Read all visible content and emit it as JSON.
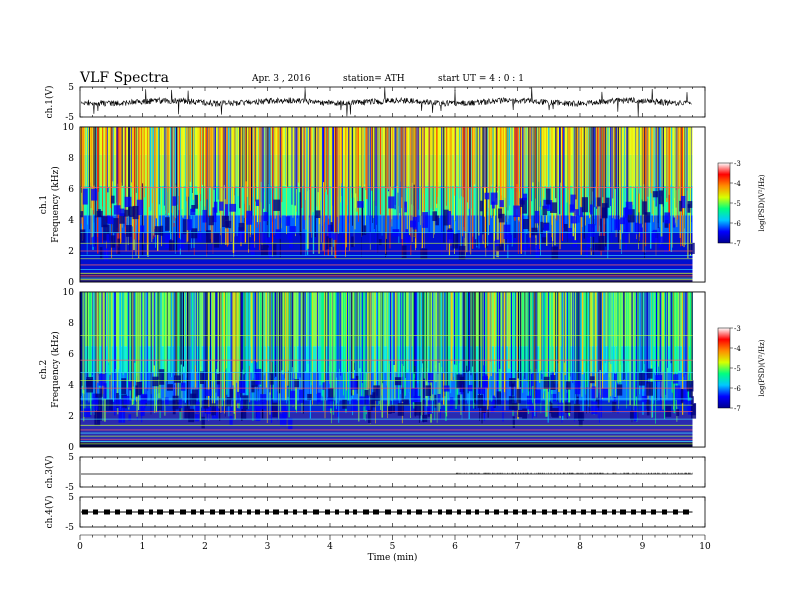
{
  "header": {
    "title": "VLF  Spectra",
    "date": "Apr. 3   , 2016",
    "station": "station= ATH",
    "start_ut": "start  UT  =   4  : 0   : 1"
  },
  "chart_data": [
    {
      "type": "line",
      "panel": "ch1-waveform",
      "ylabel": "ch.1(V)",
      "yticks": [
        5,
        -5
      ],
      "ylim": [
        -5,
        5
      ],
      "x_range": [
        0,
        9.8
      ],
      "baseline_value": 0,
      "grid": false
    },
    {
      "type": "heatmap",
      "panel": "ch1-spectrogram",
      "ylabel_channel": "ch.1",
      "ylabel": "Frequency  (kHz)",
      "yticks": [
        0,
        2,
        4,
        6,
        8,
        10
      ],
      "ylim": [
        0,
        10
      ],
      "x_range": [
        0,
        9.8
      ],
      "colorbar": {
        "label": "log(PSD)(V²/Hz)",
        "ticks": [
          -3,
          -4,
          -5,
          -6,
          -7
        ],
        "range": [
          -7,
          -3
        ],
        "colors": [
          "#00008f",
          "#0000ff",
          "#00c8ff",
          "#00ff80",
          "#d8ff00",
          "#ff8c00",
          "#ff0000",
          "#ffffff"
        ]
      }
    },
    {
      "type": "heatmap",
      "panel": "ch2-spectrogram",
      "ylabel_channel": "ch.2",
      "ylabel": "Frequency  (kHz)",
      "yticks": [
        0,
        2,
        4,
        6,
        8,
        10
      ],
      "ylim": [
        0,
        10
      ],
      "x_range": [
        0,
        9.8
      ],
      "colorbar": {
        "label": "log(PSD)(V²/Hz)",
        "ticks": [
          -3,
          -4,
          -5,
          -6,
          -7
        ],
        "range": [
          -7,
          -3
        ],
        "colors": [
          "#00008f",
          "#0000ff",
          "#00c8ff",
          "#00ff80",
          "#d8ff00",
          "#ff8c00",
          "#ff0000",
          "#ffffff"
        ]
      }
    },
    {
      "type": "line",
      "panel": "ch3-waveform",
      "ylabel": "ch.3(V)",
      "yticks": [
        5,
        -5
      ],
      "ylim": [
        -5,
        5
      ],
      "x_range": [
        0,
        9.8
      ],
      "baseline_value": 0
    },
    {
      "type": "line",
      "panel": "ch4-waveform",
      "ylabel": "ch.4(V)",
      "yticks": [
        5,
        -5
      ],
      "ylim": [
        -5,
        5
      ],
      "x_range": [
        0,
        9.8
      ],
      "baseline_value": 0
    }
  ],
  "xaxis": {
    "label": "Time  (min)",
    "ticks": [
      0,
      1,
      2,
      3,
      4,
      5,
      6,
      7,
      8,
      9,
      10
    ],
    "xlim": [
      0,
      10
    ]
  }
}
